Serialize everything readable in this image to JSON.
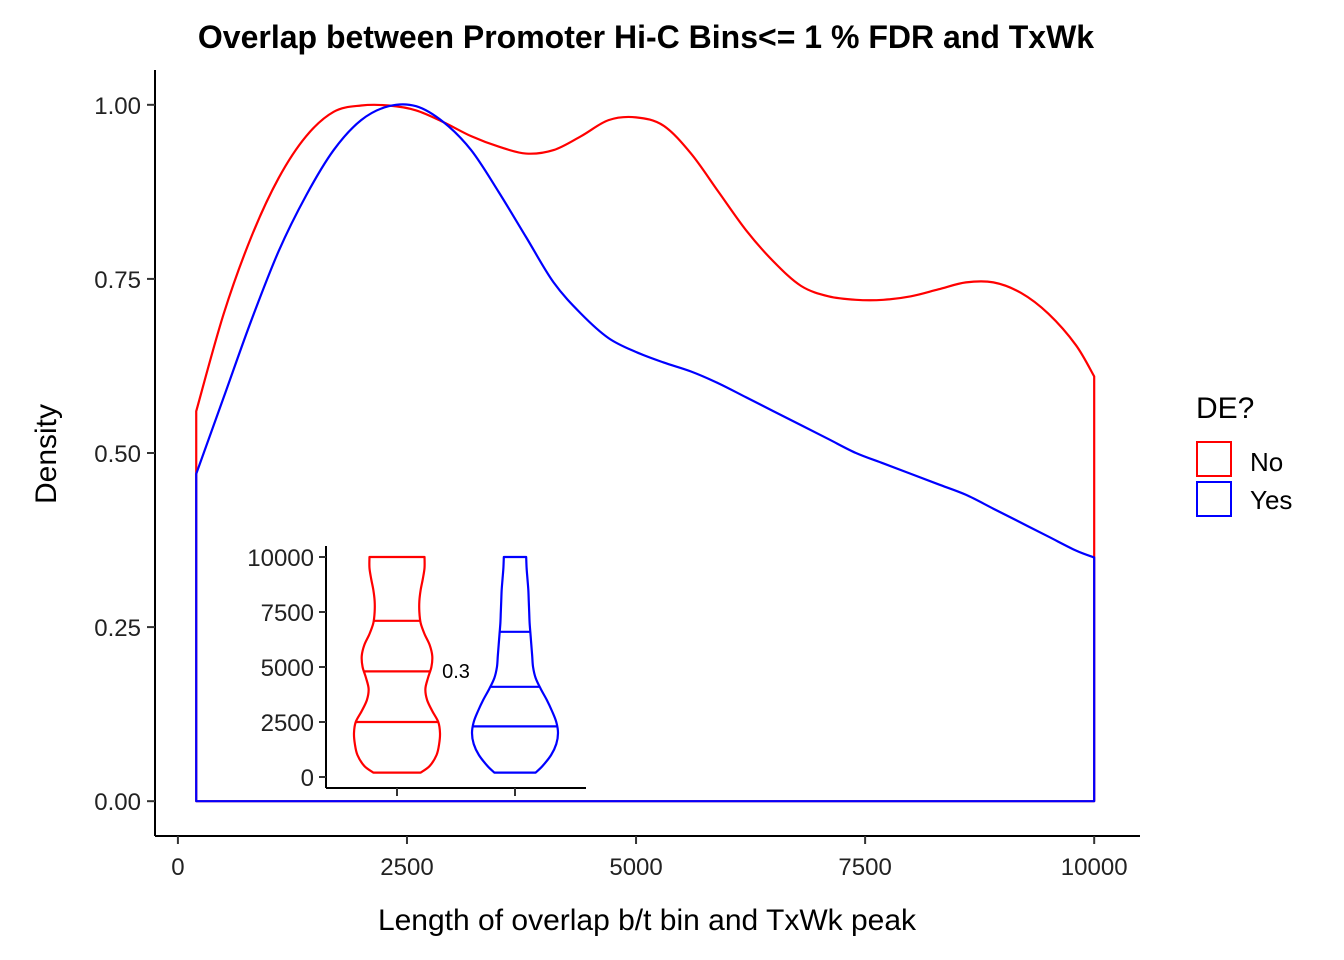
{
  "chart_data": [
    {
      "type": "area",
      "title": "Overlap between Promoter Hi-C Bins<= 1 % FDR and TxWk",
      "xlabel": "Length of overlap b/t bin and TxWk peak",
      "ylabel": "Density",
      "xlim": [
        -250,
        10500
      ],
      "ylim": [
        -0.05,
        1.05
      ],
      "x_ticks": [
        "0",
        "2500",
        "5000",
        "7500",
        "10000"
      ],
      "y_ticks": [
        "0.00",
        "0.25",
        "0.50",
        "0.75",
        "1.00"
      ],
      "grid": false,
      "legend": {
        "title": "DE?",
        "position": "right",
        "entries": [
          {
            "label": "No",
            "color": "#ff0000"
          },
          {
            "label": "Yes",
            "color": "#0000ff"
          }
        ]
      },
      "series": [
        {
          "name": "No",
          "color": "#ff0000",
          "x": [
            200,
            500,
            800,
            1100,
            1400,
            1700,
            2000,
            2300,
            2600,
            2900,
            3200,
            3500,
            3800,
            4100,
            4400,
            4700,
            5000,
            5300,
            5600,
            5900,
            6200,
            6500,
            6800,
            7100,
            7400,
            7700,
            8000,
            8300,
            8600,
            8900,
            9200,
            9500,
            9800,
            10000
          ],
          "y": [
            0.56,
            0.7,
            0.81,
            0.895,
            0.955,
            0.99,
            0.999,
            0.999,
            0.992,
            0.975,
            0.955,
            0.94,
            0.93,
            0.935,
            0.955,
            0.978,
            0.982,
            0.97,
            0.93,
            0.875,
            0.82,
            0.775,
            0.74,
            0.725,
            0.72,
            0.72,
            0.725,
            0.735,
            0.745,
            0.745,
            0.73,
            0.7,
            0.655,
            0.61
          ]
        },
        {
          "name": "Yes",
          "color": "#0000ff",
          "x": [
            200,
            500,
            800,
            1100,
            1400,
            1700,
            2000,
            2300,
            2600,
            2900,
            3200,
            3500,
            3800,
            4100,
            4400,
            4700,
            5000,
            5300,
            5600,
            5900,
            6200,
            6500,
            6800,
            7100,
            7400,
            7700,
            8000,
            8300,
            8600,
            8900,
            9200,
            9500,
            9800,
            10000
          ],
          "y": [
            0.47,
            0.58,
            0.69,
            0.79,
            0.87,
            0.935,
            0.978,
            0.998,
            0.998,
            0.975,
            0.935,
            0.875,
            0.81,
            0.745,
            0.7,
            0.665,
            0.645,
            0.63,
            0.617,
            0.6,
            0.58,
            0.56,
            0.54,
            0.52,
            0.5,
            0.485,
            0.47,
            0.455,
            0.44,
            0.42,
            0.4,
            0.38,
            0.36,
            0.35
          ]
        }
      ]
    },
    {
      "type": "violin",
      "ylim": [
        0,
        10000
      ],
      "y_ticks": [
        "0",
        "2500",
        "5000",
        "7500",
        "10000"
      ],
      "annotation": "0.3",
      "groups": [
        {
          "name": "No",
          "color": "#ff0000",
          "quantiles": [
            2500,
            4800,
            7100
          ],
          "range": [
            200,
            10000
          ],
          "profile_y": [
            200,
            500,
            1000,
            1500,
            2000,
            2500,
            3000,
            3500,
            4000,
            4500,
            5000,
            5500,
            6000,
            6500,
            7000,
            7500,
            8000,
            8500,
            9000,
            9500,
            10000
          ],
          "profile_halfwidth": [
            0.55,
            0.76,
            0.92,
            0.98,
            1.0,
            0.96,
            0.82,
            0.7,
            0.66,
            0.72,
            0.8,
            0.82,
            0.76,
            0.64,
            0.55,
            0.52,
            0.52,
            0.55,
            0.6,
            0.64,
            0.64
          ]
        },
        {
          "name": "Yes",
          "color": "#0000ff",
          "quantiles": [
            2300,
            4100,
            6600
          ],
          "range": [
            200,
            10000
          ],
          "profile_y": [
            200,
            500,
            1000,
            1500,
            2000,
            2500,
            3000,
            3500,
            4000,
            4500,
            5000,
            5500,
            6000,
            6500,
            7000,
            7500,
            8000,
            8500,
            9000,
            9500,
            10000
          ],
          "profile_halfwidth": [
            0.48,
            0.64,
            0.84,
            0.96,
            1.0,
            0.96,
            0.86,
            0.74,
            0.6,
            0.48,
            0.42,
            0.4,
            0.38,
            0.36,
            0.34,
            0.33,
            0.32,
            0.31,
            0.29,
            0.27,
            0.26
          ]
        }
      ]
    }
  ]
}
